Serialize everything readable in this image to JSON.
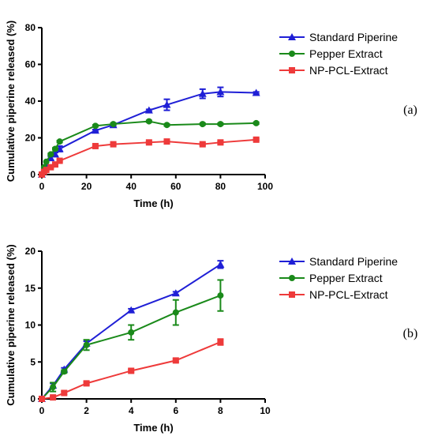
{
  "chart_data": [
    {
      "type": "line",
      "panel_label": "(a)",
      "xlabel": "Time (h)",
      "ylabel": "Cumulative piperine released (%)",
      "xlim": [
        0,
        100
      ],
      "ylim": [
        0,
        80
      ],
      "xticks": [
        0,
        20,
        40,
        60,
        80,
        100
      ],
      "yticks": [
        0,
        20,
        40,
        60,
        80
      ],
      "grid": false,
      "legend_position": "top-right",
      "series": [
        {
          "name": "Standard Piperine",
          "color": "#1f1fd6",
          "marker": "triangle",
          "x": [
            0,
            1,
            2,
            4,
            6,
            8,
            24,
            32,
            48,
            56,
            72,
            80,
            96
          ],
          "y": [
            0,
            3,
            6,
            9,
            11,
            14,
            24,
            27,
            35,
            38,
            44,
            45,
            44.5
          ],
          "err": [
            0,
            0,
            0,
            1,
            1,
            1.5,
            0.5,
            0.5,
            0.5,
            3,
            2.5,
            2.5,
            0.5
          ]
        },
        {
          "name": "Pepper Extract",
          "color": "#1a8a1a",
          "marker": "circle",
          "x": [
            0,
            1,
            2,
            4,
            6,
            8,
            24,
            32,
            48,
            56,
            72,
            80,
            96
          ],
          "y": [
            0,
            4,
            7,
            11,
            14,
            18,
            26.5,
            27.5,
            29,
            27,
            27.5,
            27.5,
            28
          ],
          "err": [
            0,
            0,
            0,
            0.5,
            0.5,
            0.5,
            0.5,
            0.5,
            0.5,
            0.5,
            0.5,
            0.5,
            0.5
          ]
        },
        {
          "name": "NP-PCL-Extract",
          "color": "#ee3a3a",
          "marker": "square",
          "x": [
            0,
            1,
            2,
            4,
            6,
            8,
            24,
            32,
            48,
            56,
            72,
            80,
            96
          ],
          "y": [
            0,
            1.5,
            2.5,
            4,
            5.5,
            7.5,
            15.5,
            16.5,
            17.5,
            18,
            16.5,
            17.5,
            19
          ],
          "err": [
            0,
            0,
            0,
            0.5,
            0.5,
            0.5,
            0.5,
            0.5,
            0.5,
            0.5,
            0.5,
            0.5,
            0.5
          ]
        }
      ]
    },
    {
      "type": "line",
      "panel_label": "(b)",
      "xlabel": "Time (h)",
      "ylabel": "Cumulative piperine released (%)",
      "xlim": [
        0,
        10
      ],
      "ylim": [
        0,
        20
      ],
      "xticks": [
        0,
        2,
        4,
        6,
        8,
        10
      ],
      "yticks": [
        0,
        5,
        10,
        15,
        20
      ],
      "grid": false,
      "legend_position": "top-right",
      "series": [
        {
          "name": "Standard Piperine",
          "color": "#1f1fd6",
          "marker": "triangle",
          "x": [
            0,
            0.5,
            1,
            2,
            4,
            6,
            8
          ],
          "y": [
            0,
            1.8,
            4,
            7.5,
            12,
            14.3,
            18.2
          ],
          "err": [
            0,
            0.3,
            0.2,
            0.3,
            0.2,
            0.2,
            0.5
          ]
        },
        {
          "name": "Pepper Extract",
          "color": "#1a8a1a",
          "marker": "circle",
          "x": [
            0,
            0.5,
            1,
            2,
            4,
            6,
            8
          ],
          "y": [
            0,
            1.6,
            3.7,
            7.3,
            9,
            11.7,
            14
          ],
          "err": [
            0,
            0.6,
            0.2,
            0.7,
            1,
            1.7,
            2.1
          ]
        },
        {
          "name": "NP-PCL-Extract",
          "color": "#ee3a3a",
          "marker": "square",
          "x": [
            0,
            0.5,
            1,
            2,
            4,
            6,
            8
          ],
          "y": [
            0,
            0.2,
            0.8,
            2.1,
            3.8,
            5.2,
            7.7
          ],
          "err": [
            0,
            0.1,
            0.2,
            0.2,
            0.2,
            0.2,
            0.4
          ]
        }
      ]
    }
  ]
}
